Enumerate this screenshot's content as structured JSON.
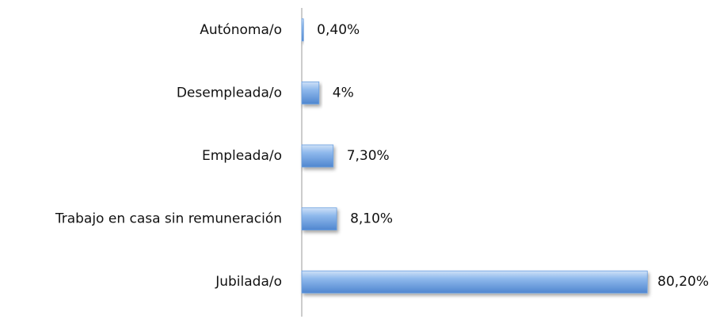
{
  "chart_data": {
    "type": "bar",
    "orientation": "horizontal",
    "categories": [
      "Autónoma/o",
      "Desempleada/o",
      "Empleada/o",
      "Trabajo en casa sin remuneración",
      "Jubilada/o"
    ],
    "values": [
      0.4,
      4,
      7.3,
      8.1,
      80.2
    ],
    "value_labels": [
      "0,40%",
      "4%",
      "7,30%",
      "8,10%",
      "80,20%"
    ],
    "color": "#6a9fe0"
  }
}
